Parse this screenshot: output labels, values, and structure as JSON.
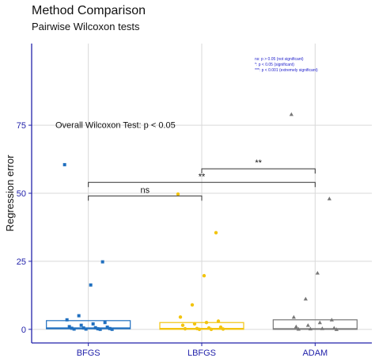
{
  "title": "Method Comparison",
  "subtitle": "Pairwise Wilcoxon tests",
  "chart_data": {
    "type": "box",
    "title": "Method Comparison",
    "subtitle": "Pairwise Wilcoxon tests",
    "xlabel": "",
    "ylabel": "Regression error",
    "ylim": [
      -5,
      105
    ],
    "yticks": [
      0,
      25,
      50,
      75
    ],
    "categories": [
      "BFGS",
      "LBFGS",
      "ADAM"
    ],
    "grid": true,
    "series": [
      {
        "category": "BFGS",
        "color": "#1f6fbf",
        "marker": "square",
        "box": {
          "q1": 0.2,
          "median": 0.5,
          "q3": 3.2
        },
        "points": [
          60.5,
          24.8,
          16.3,
          5.0,
          3.5,
          2.5,
          2.0,
          1.5,
          1.0,
          0.8,
          0.6,
          0.5,
          0.4,
          0.3,
          0.2,
          0.1,
          0.1,
          0.0,
          0.0
        ]
      },
      {
        "category": "LBFGS",
        "color": "#f2c40f",
        "marker": "circle",
        "box": {
          "q1": 0.0,
          "median": 0.3,
          "q3": 2.5
        },
        "points": [
          49.7,
          35.5,
          19.7,
          9.0,
          4.5,
          3.0,
          2.5,
          2.0,
          1.5,
          0.8,
          0.5,
          0.3,
          0.2,
          0.1,
          0.0,
          0.0
        ]
      },
      {
        "category": "ADAM",
        "color": "#777777",
        "marker": "triangle",
        "box": {
          "q1": 0.0,
          "median": 0.2,
          "q3": 3.5
        },
        "points": [
          79.0,
          48.0,
          20.7,
          11.2,
          4.5,
          3.5,
          2.5,
          1.5,
          1.0,
          0.5,
          0.3,
          0.2,
          0.1,
          0.0
        ]
      }
    ],
    "annotations": {
      "overall": "Overall Wilcoxon Test: p < 0.05",
      "comparisons": [
        {
          "from": "BFGS",
          "to": "LBFGS",
          "y": 49.0,
          "label": "ns"
        },
        {
          "from": "BFGS",
          "to": "ADAM",
          "y": 54.0,
          "label": "**"
        },
        {
          "from": "LBFGS",
          "to": "ADAM",
          "y": 59.0,
          "label": "**"
        }
      ],
      "legend": [
        "ns: p > 0.05 (not significant)",
        "*: p < 0.05 (significant)",
        "***: p < 0.001 (extremely significant)"
      ],
      "legend_color": "#2222cc"
    },
    "axis_color": "#2222aa"
  }
}
